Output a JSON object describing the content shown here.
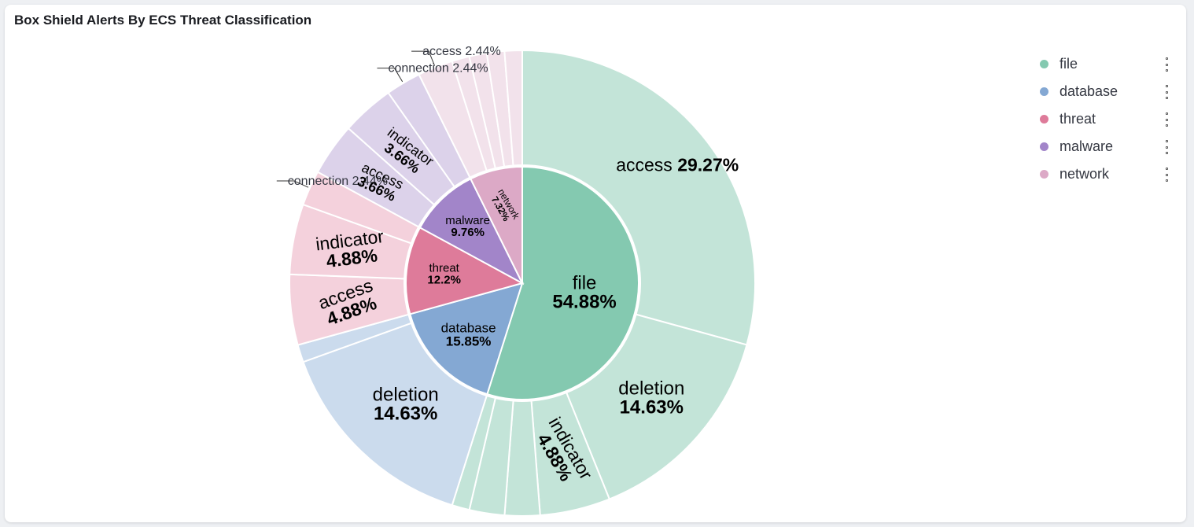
{
  "panel": {
    "title": "Box Shield Alerts By ECS Threat Classification"
  },
  "legend": {
    "items": [
      {
        "label": "file",
        "color": "#84c9b0"
      },
      {
        "label": "database",
        "color": "#84a8d3"
      },
      {
        "label": "threat",
        "color": "#de7b9a"
      },
      {
        "label": "malware",
        "color": "#a285c9"
      },
      {
        "label": "network",
        "color": "#dca9c6"
      }
    ]
  },
  "chart_data": {
    "type": "pie",
    "title": "Box Shield Alerts By ECS Threat Classification",
    "unit": "%",
    "series": [
      {
        "name": "file",
        "value": 54.88,
        "label": "54.88%",
        "color": "#84c9b0",
        "child_color": "#c3e4d8",
        "children": [
          {
            "name": "access",
            "value": 29.27,
            "label": "29.27%"
          },
          {
            "name": "deletion",
            "value": 14.63,
            "label": "14.63%"
          },
          {
            "name": "indicator",
            "value": 4.88,
            "label": "4.88%"
          },
          {
            "name": "",
            "value": 2.44,
            "label": ""
          },
          {
            "name": "",
            "value": 2.44,
            "label": ""
          },
          {
            "name": "",
            "value": 1.22,
            "label": ""
          }
        ]
      },
      {
        "name": "database",
        "value": 15.85,
        "label": "15.85%",
        "color": "#84a8d3",
        "child_color": "#cbdbed",
        "children": [
          {
            "name": "deletion",
            "value": 14.63,
            "label": "14.63%"
          },
          {
            "name": "",
            "value": 1.22,
            "label": ""
          }
        ]
      },
      {
        "name": "threat",
        "value": 12.2,
        "label": "12.2%",
        "color": "#de7b9a",
        "child_color": "#f4d1dc",
        "children": [
          {
            "name": "access",
            "value": 4.88,
            "label": "4.88%"
          },
          {
            "name": "indicator",
            "value": 4.88,
            "label": "4.88%"
          },
          {
            "name": "connection",
            "value": 2.44,
            "label": "2.44%",
            "callout": true
          }
        ]
      },
      {
        "name": "malware",
        "value": 9.76,
        "label": "9.76%",
        "color": "#a285c9",
        "child_color": "#dcd2ea",
        "children": [
          {
            "name": "access",
            "value": 3.66,
            "label": "3.66%"
          },
          {
            "name": "indicator",
            "value": 3.66,
            "label": "3.66%"
          },
          {
            "name": "connection",
            "value": 2.44,
            "label": "2.44%",
            "callout": true
          }
        ]
      },
      {
        "name": "network",
        "value": 7.32,
        "label": "7.32%",
        "color": "#dca9c6",
        "child_color": "#f2e2eb",
        "children": [
          {
            "name": "access",
            "value": 2.44,
            "label": "2.44%",
            "callout": true
          },
          {
            "name": "",
            "value": 1.22,
            "label": ""
          },
          {
            "name": "",
            "value": 1.22,
            "label": ""
          },
          {
            "name": "",
            "value": 1.22,
            "label": ""
          },
          {
            "name": "",
            "value": 1.22,
            "label": ""
          }
        ]
      }
    ]
  }
}
